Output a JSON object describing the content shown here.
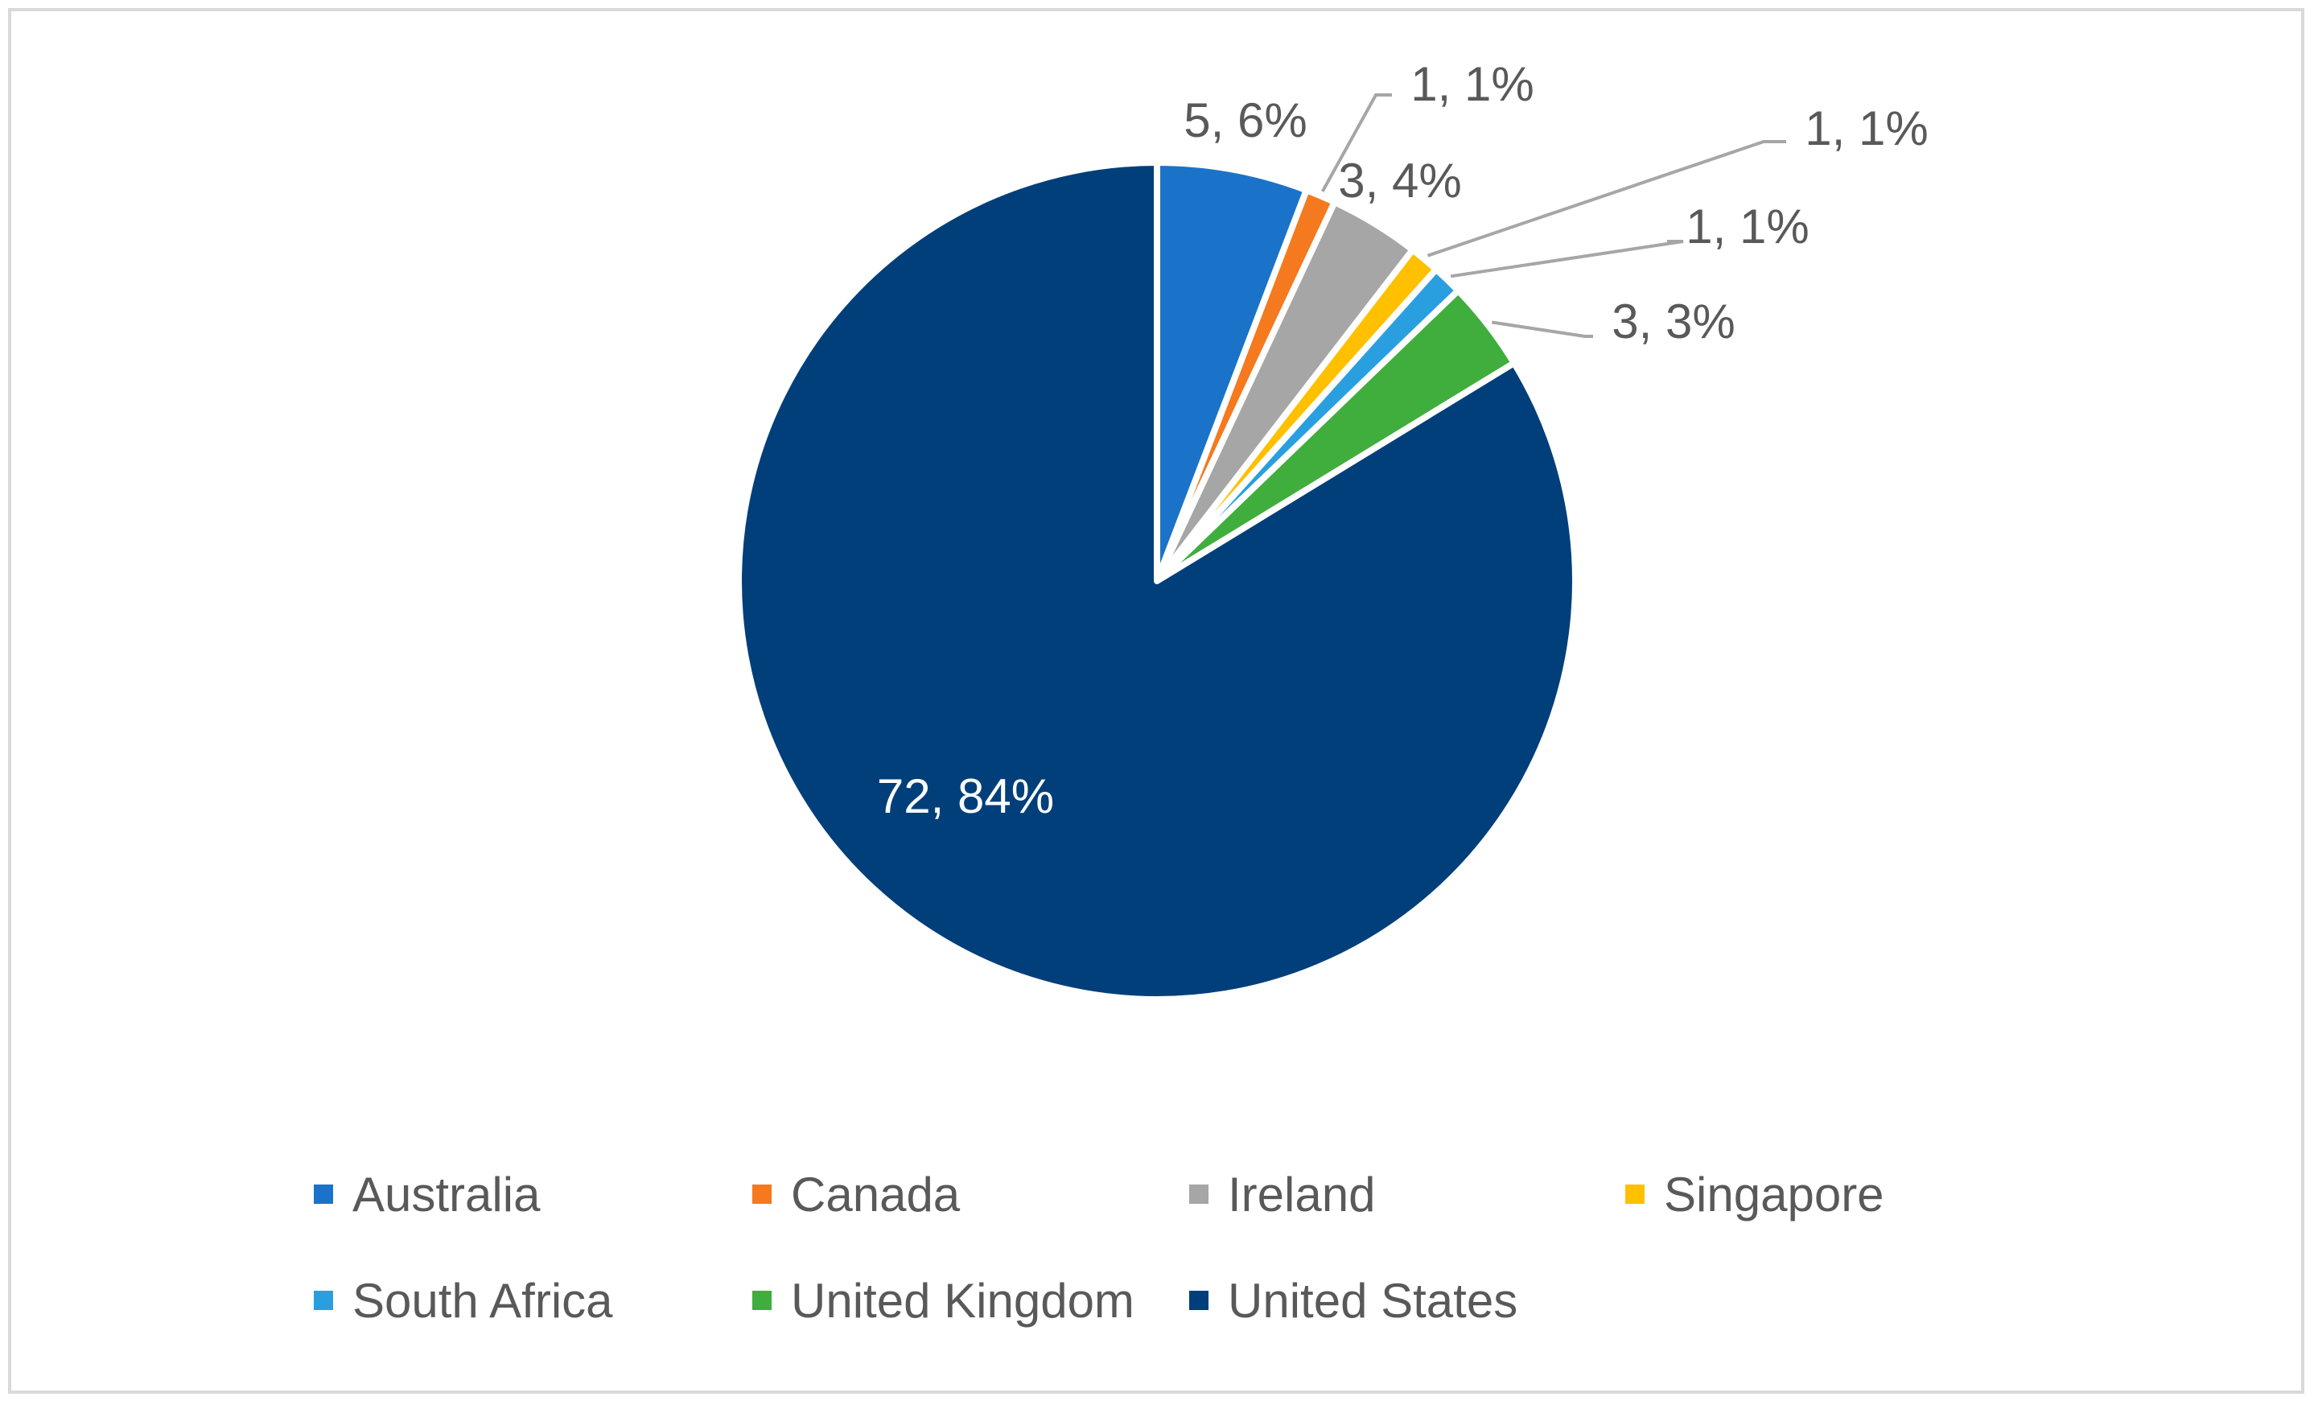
{
  "chart_data": {
    "type": "pie",
    "slices": [
      {
        "name": "Australia",
        "value": 5,
        "label": "5, 6%",
        "color": "#1a73c8"
      },
      {
        "name": "Canada",
        "value": 1,
        "label": "1, 1%",
        "color": "#f5791f"
      },
      {
        "name": "Ireland",
        "value": 3,
        "label": "3, 4%",
        "color": "#a6a6a6"
      },
      {
        "name": "Singapore",
        "value": 1,
        "label": "1, 1%",
        "color": "#ffc000"
      },
      {
        "name": "South Africa",
        "value": 1,
        "label": "1, 1%",
        "color": "#2a9fe0"
      },
      {
        "name": "United Kingdom",
        "value": 3,
        "label": "3, 3%",
        "color": "#3fae3d"
      },
      {
        "name": "United States",
        "value": 72,
        "label": "72, 84%",
        "color": "#003f7a"
      }
    ],
    "legend_position": "bottom",
    "start_angle": "top",
    "direction": "clockwise"
  }
}
